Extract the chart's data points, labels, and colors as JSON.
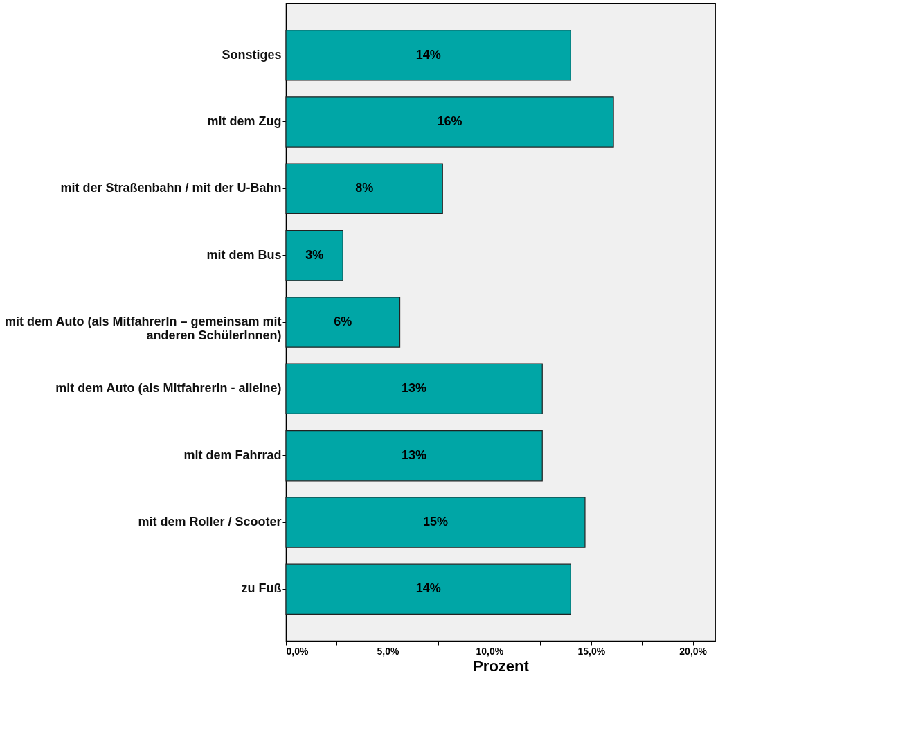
{
  "chart_data": {
    "type": "bar",
    "orientation": "horizontal",
    "xlabel": "Prozent",
    "categories": [
      "Sonstiges",
      "mit dem Zug",
      "mit der Straßenbahn / mit der U-Bahn",
      "mit dem Bus",
      "mit dem Auto (als MitfahrerIn – gemeinsam mit anderen SchülerInnen)",
      "mit dem Auto (als MitfahrerIn - alleine)",
      "mit dem Fahrrad",
      "mit dem Roller / Scooter",
      "zu Fuß"
    ],
    "values": [
      14.0,
      16.1,
      7.7,
      2.8,
      5.6,
      12.6,
      12.6,
      14.7,
      14.0
    ],
    "value_labels": [
      "14%",
      "16%",
      "8%",
      "3%",
      "6%",
      "13%",
      "13%",
      "15%",
      "14%"
    ],
    "color": "#00a6a6",
    "xlim": [
      0,
      21.1
    ],
    "xticks": [
      {
        "value": 0,
        "label": "0,0%"
      },
      {
        "value": 2.5,
        "label": null
      },
      {
        "value": 5,
        "label": "5,0%"
      },
      {
        "value": 7.5,
        "label": null
      },
      {
        "value": 10,
        "label": "10,0%"
      },
      {
        "value": 12.5,
        "label": null
      },
      {
        "value": 15,
        "label": "15,0%"
      },
      {
        "value": 17.5,
        "label": null
      },
      {
        "value": 20,
        "label": "20,0%"
      }
    ],
    "grid": false
  }
}
